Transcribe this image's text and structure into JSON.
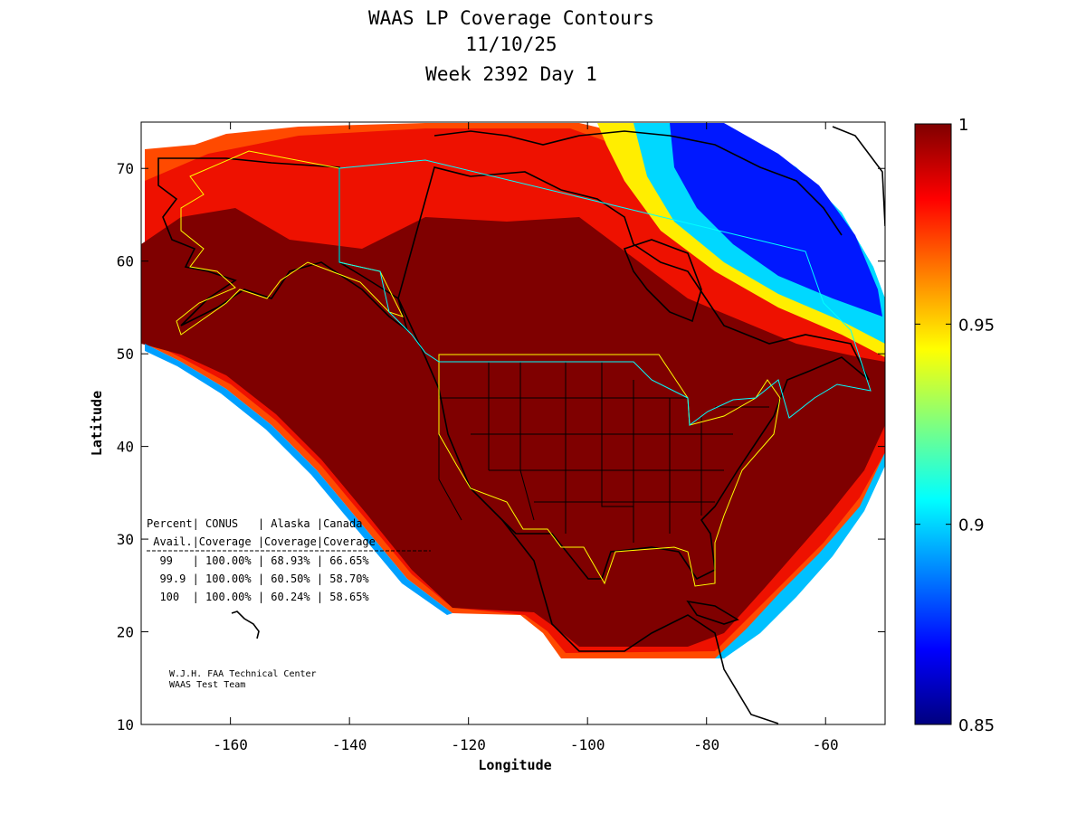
{
  "title": {
    "line1": "WAAS LP Coverage Contours",
    "line2": "11/10/25",
    "line3": "Week 2392 Day 1"
  },
  "axes": {
    "xlabel": "Longitude",
    "ylabel": "Latitude",
    "xlim": [
      -175,
      -50
    ],
    "ylim": [
      10,
      75
    ],
    "xticks": [
      -160,
      -140,
      -120,
      -100,
      -80,
      -60
    ],
    "yticks": [
      10,
      20,
      30,
      40,
      50,
      60,
      70
    ],
    "xtick_labels": [
      "-160",
      "-140",
      "-120",
      "-100",
      "-80",
      "-60"
    ],
    "ytick_labels": [
      "10",
      "20",
      "30",
      "40",
      "50",
      "60",
      "70"
    ]
  },
  "colorbar": {
    "min": 0.85,
    "max": 1,
    "tick_labels": [
      "1",
      "0.95",
      "0.9",
      "0.85"
    ],
    "tick_values": [
      1,
      0.95,
      0.9,
      0.85
    ]
  },
  "stats_table": {
    "header1": "Percent| CONUS   | Alaska |Canada",
    "header2": " Avail.|Coverage |Coverage|Coverage",
    "rows": [
      "  99   | 100.00% | 68.93% | 66.65%",
      "  99.9 | 100.00% | 60.50% | 58.70%",
      "  100  | 100.00% | 60.24% | 58.65%"
    ]
  },
  "credit": {
    "line1": "W.J.H. FAA Technical Center",
    "line2": "WAAS Test Team"
  },
  "colors": {
    "frame": "#000000",
    "conus_boundary": "#ffff00",
    "canada_boundary": "#00ffff",
    "coast": "#000000",
    "high": "#7f0000",
    "low": "#00007f"
  },
  "chart_data": {
    "type": "heatmap",
    "title": "WAAS LP Coverage Contours",
    "xlabel": "Longitude",
    "ylabel": "Latitude",
    "xlim": [
      -175,
      -50
    ],
    "ylim": [
      10,
      75
    ],
    "value_range": [
      0.85,
      1
    ],
    "colormap": "jet",
    "regions": [
      {
        "name": "CONUS",
        "availability_99": "100.00%",
        "availability_99_9": "100.00%",
        "availability_100": "100.00%"
      },
      {
        "name": "Alaska",
        "availability_99": "68.93%",
        "availability_99_9": "60.50%",
        "availability_100": "60.24%"
      },
      {
        "name": "Canada",
        "availability_99": "66.65%",
        "availability_99_9": "58.70%",
        "availability_100": "58.65%"
      }
    ]
  }
}
